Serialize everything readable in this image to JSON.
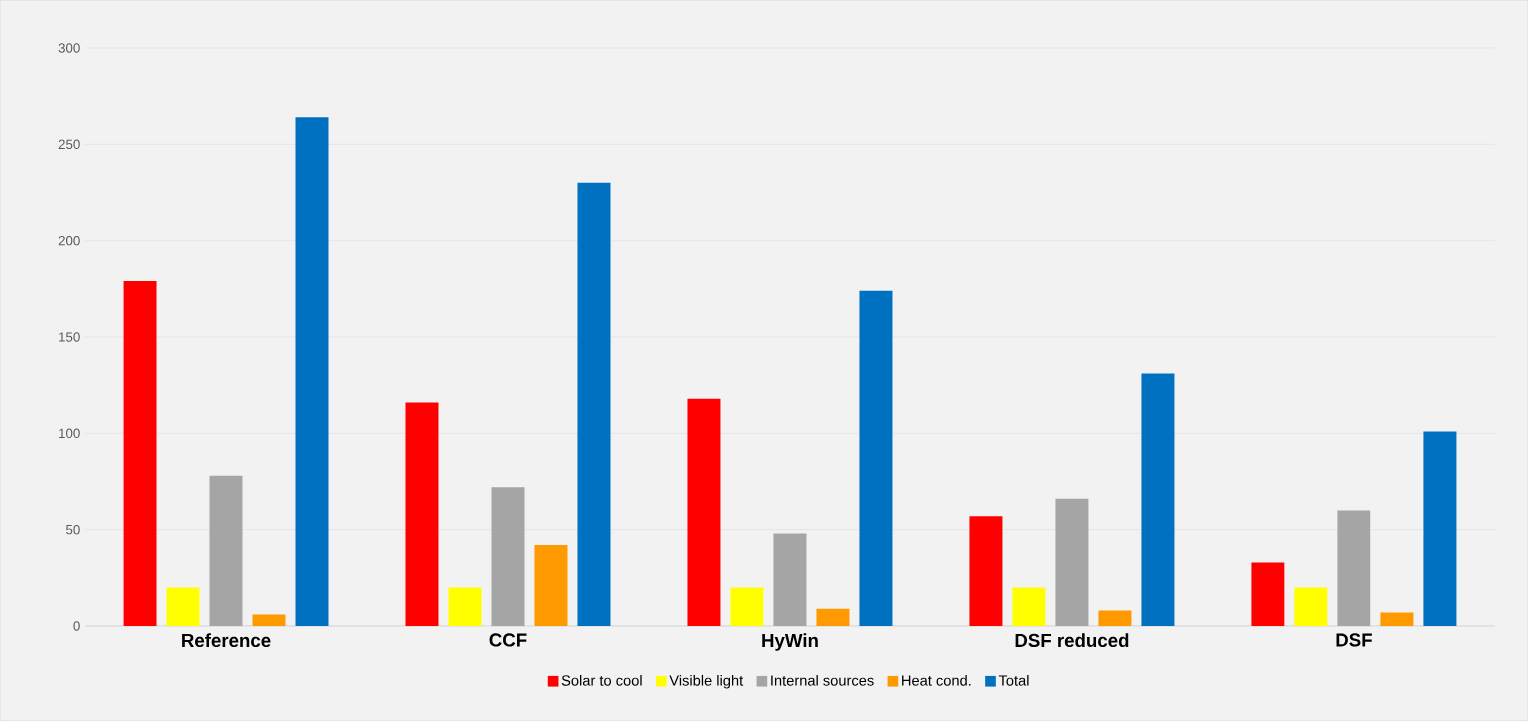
{
  "chart_data": {
    "type": "bar",
    "categories": [
      "Reference",
      "CCF",
      "HyWin",
      "DSF reduced",
      "DSF"
    ],
    "series": [
      {
        "name": "Solar to cool",
        "color": "#ff0000",
        "values": [
          179,
          116,
          118,
          57,
          33
        ]
      },
      {
        "name": "Visible light",
        "color": "#ffff00",
        "values": [
          20,
          20,
          20,
          20,
          20
        ]
      },
      {
        "name": "Internal sources",
        "color": "#a5a5a5",
        "values": [
          78,
          72,
          48,
          66,
          60
        ]
      },
      {
        "name": "Heat cond.",
        "color": "#ff9900",
        "values": [
          6,
          42,
          9,
          8,
          7
        ]
      },
      {
        "name": "Total",
        "color": "#0070c0",
        "values": [
          264,
          230,
          174,
          131,
          101
        ]
      }
    ],
    "ylim": [
      0,
      300
    ],
    "yticks": [
      0,
      50,
      100,
      150,
      200,
      250,
      300
    ],
    "grid": "y",
    "legend": "bottom"
  }
}
